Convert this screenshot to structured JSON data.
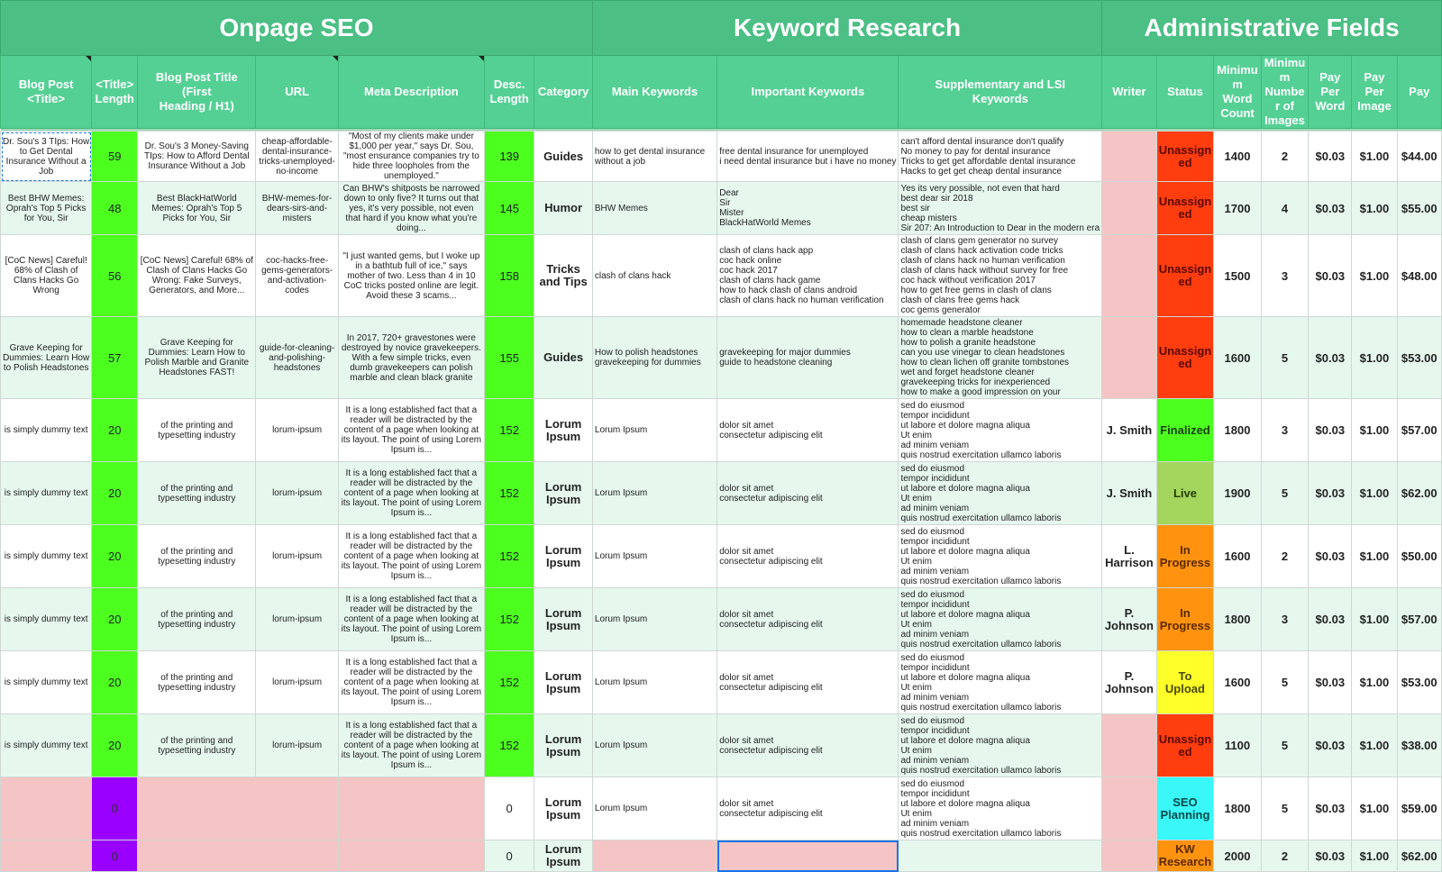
{
  "groups": [
    {
      "label": "Onpage SEO",
      "span": 7
    },
    {
      "label": "Keyword Research",
      "span": 3
    },
    {
      "label": "Administrative Fields",
      "span": 7
    }
  ],
  "columns": [
    "Blog Post <Title>",
    "<Title> Length",
    "Blog Post Title (First Heading / H1)",
    "URL",
    "Meta Description",
    "Desc. Length",
    "Category",
    "Main Keywords",
    "Important Keywords",
    "Supplementary and LSI Keywords",
    "Writer",
    "Status",
    "Minimum Word Count",
    "Minimum Number of Images",
    "Pay Per Word",
    "Pay Per Image",
    "Pay"
  ],
  "column_display": [
    "Blog Post <Title>",
    "<Title>\nLength",
    "Blog Post Title (First\nHeading / H1)",
    "URL",
    "Meta Description",
    "Desc.\nLength",
    "Category",
    "Main Keywords",
    "Important Keywords",
    "Supplementary and LSI\nKeywords",
    "Writer",
    "Status",
    "Minimu\nm Word\nCount",
    "Minimu\nm\nNumbe\nr of\nImages",
    "Pay Per\nWord",
    "Pay Per\nImage",
    "Pay"
  ],
  "rows": [
    {
      "title": "Dr. Sou's 3 TIps: How to Get Dental Insurance Without a Job",
      "title_len": "59",
      "h1": "Dr. Sou's 3 Money-Saving TIps: How to Afford Dental Insurance Without a Job",
      "url": "cheap-affordable-dental-insurance-tricks-unemployed-no-income",
      "meta": "\"Most of my clients make under $1,000 per year,\" says Dr. Sou, \"most ensurance companies try to hide three loopholes from the unemployed.\"",
      "desc_len": "139",
      "category": "Guides",
      "main_kw": "how to get dental insurance without a job",
      "imp_kw": "free dental insurance for unemployed\ni need dental insurance but i have no money",
      "lsi_kw": "can't afford dental insurance don't qualify\nNo money to pay for dental insurance\nTricks to get get affordable dental insurance\nHacks to get get cheap dental insurance",
      "writer": "",
      "status": "Unassigned",
      "min_words": "1400",
      "min_images": "2",
      "ppw": "$0.03",
      "ppi": "$1.00",
      "pay": "$44.00",
      "h": 48
    },
    {
      "title": "Best BHW Memes: Oprah's Top 5 Picks for You, Sir",
      "title_len": "48",
      "h1": "Best BlackHatWorld Memes: Oprah's Top 5 Picks for You, Sir",
      "url": "BHW-memes-for-dears-sirs-and-misters",
      "meta": "Can BHW's shitposts be narrowed down to only five? It turns out that yes, it's very possible, not even that hard if you know what you're doing...",
      "desc_len": "145",
      "category": "Humor",
      "main_kw": "BHW Memes",
      "imp_kw": "Dear\nSir\nMister\nBlackHatWorld Memes",
      "lsi_kw": "Yes its very possible, not even that hard\nbest dear sir 2018\nbest sir\ncheap misters\nSir 207: An Introduction to Dear in the modern era",
      "writer": "",
      "status": "Unassigned",
      "min_words": "1700",
      "min_images": "4",
      "ppw": "$0.03",
      "ppi": "$1.00",
      "pay": "$55.00",
      "h": 58
    },
    {
      "title": "[CoC News] Careful! 68% of Clash of Clans Hacks Go Wrong",
      "title_len": "56",
      "h1": "[CoC News] Careful! 68% of Clash of Clans Hacks Go Wrong: Fake Surveys, Generators, and More...",
      "url": "coc-hacks-free-gems-generators-and-activation-codes",
      "meta": "\"I just wanted gems, but I woke up in a bathtub full of ice,\" says mother of two. Less than 4 in 10 CoC tricks posted online are legit. Avoid these 3 scams...",
      "desc_len": "158",
      "category": "Tricks and Tips",
      "main_kw": "clash of clans hack",
      "imp_kw": "clash of clans hack app\ncoc hack online\ncoc hack 2017\nclash of clans hack game\nhow to hack clash of clans android\nclash of clans hack no human verification",
      "lsi_kw": "clash of clans gem generator no survey\nclash of clans hack activation code tricks\nclash of clans hack no human verification\nclash of clans hack without survey for free\ncoc hack without verification 2017\nhow to get free gems in clash of clans\nclash of clans free gems hack\ncoc gems generator",
      "writer": "",
      "status": "Unassigned",
      "min_words": "1500",
      "min_images": "3",
      "ppw": "$0.03",
      "ppi": "$1.00",
      "pay": "$48.00",
      "h": 90
    },
    {
      "title": "Grave Keeping for Dummies: Learn How to Polish Headstones",
      "title_len": "57",
      "h1": "Grave Keeping for Dummies: Learn How to Polish Marble and Granite Headstones FAST!",
      "url": "guide-for-cleaning-and-polishing-headstones",
      "meta": "In 2017, 720+ gravestones were destroyed by novice gravekeepers. With a few simple tricks, even dumb gravekeepers can polish marble and clean black granite",
      "desc_len": "155",
      "category": "Guides",
      "main_kw": "How to polish headstones\ngravekeeping for dummies",
      "imp_kw": "gravekeeping for major dummies\nguide to headstone cleaning",
      "lsi_kw": "homemade headstone cleaner\nhow to clean a marble headstone\nhow to polish a granite headstone\ncan you use vinegar to clean headstones\nhow to clean lichen off granite tombstones\nwet and forget headstone cleaner\ngravekeeping tricks for inexperienced\nhow to make a good impression on your",
      "writer": "",
      "status": "Unassigned",
      "min_words": "1600",
      "min_images": "5",
      "ppw": "$0.03",
      "ppi": "$1.00",
      "pay": "$53.00",
      "h": 90
    },
    {
      "title": "is simply dummy text",
      "title_len": "20",
      "h1": "of the printing and typesetting industry",
      "url": "lorum-ipsum",
      "meta": "It is a long established fact that a reader will be distracted by the content of a page when looking at its layout. The point of using Lorem Ipsum is...",
      "desc_len": "152",
      "category": "Lorum Ipsum",
      "main_kw": "Lorum Ipsum",
      "imp_kw": "dolor sit amet\nconsectetur adipiscing elit",
      "lsi_kw": "sed do eiusmod\ntempor incididunt\nut labore et dolore magna aliqua\nUt enim\nad minim veniam\nquis nostrud exercitation ullamco laboris",
      "writer": "J. Smith",
      "status": "Finalized",
      "min_words": "1800",
      "min_images": "3",
      "ppw": "$0.03",
      "ppi": "$1.00",
      "pay": "$57.00",
      "h": 69
    },
    {
      "title": "is simply dummy text",
      "title_len": "20",
      "h1": "of the printing and typesetting industry",
      "url": "lorum-ipsum",
      "meta": "It is a long established fact that a reader will be distracted by the content of a page when looking at its layout. The point of using Lorem Ipsum is...",
      "desc_len": "152",
      "category": "Lorum Ipsum",
      "main_kw": "Lorum Ipsum",
      "imp_kw": "dolor sit amet\nconsectetur adipiscing elit",
      "lsi_kw": "sed do eiusmod\ntempor incididunt\nut labore et dolore magna aliqua\nUt enim\nad minim veniam\nquis nostrud exercitation ullamco laboris",
      "writer": "J. Smith",
      "status": "Live",
      "min_words": "1900",
      "min_images": "5",
      "ppw": "$0.03",
      "ppi": "$1.00",
      "pay": "$62.00",
      "h": 69
    },
    {
      "title": "is simply dummy text",
      "title_len": "20",
      "h1": "of the printing and typesetting industry",
      "url": "lorum-ipsum",
      "meta": "It is a long established fact that a reader will be distracted by the content of a page when looking at its layout. The point of using Lorem Ipsum is...",
      "desc_len": "152",
      "category": "Lorum Ipsum",
      "main_kw": "Lorum Ipsum",
      "imp_kw": "dolor sit amet\nconsectetur adipiscing elit",
      "lsi_kw": "sed do eiusmod\ntempor incididunt\nut labore et dolore magna aliqua\nUt enim\nad minim veniam\nquis nostrud exercitation ullamco laboris",
      "writer": "L. Harrison",
      "status": "In Progress",
      "min_words": "1600",
      "min_images": "2",
      "ppw": "$0.03",
      "ppi": "$1.00",
      "pay": "$50.00",
      "h": 69
    },
    {
      "title": "is simply dummy text",
      "title_len": "20",
      "h1": "of the printing and typesetting industry",
      "url": "lorum-ipsum",
      "meta": "It is a long established fact that a reader will be distracted by the content of a page when looking at its layout. The point of using Lorem Ipsum is...",
      "desc_len": "152",
      "category": "Lorum Ipsum",
      "main_kw": "Lorum Ipsum",
      "imp_kw": "dolor sit amet\nconsectetur adipiscing elit",
      "lsi_kw": "sed do eiusmod\ntempor incididunt\nut labore et dolore magna aliqua\nUt enim\nad minim veniam\nquis nostrud exercitation ullamco laboris",
      "writer": "P. Johnson",
      "status": "In Progress",
      "min_words": "1800",
      "min_images": "3",
      "ppw": "$0.03",
      "ppi": "$1.00",
      "pay": "$57.00",
      "h": 69
    },
    {
      "title": "is simply dummy text",
      "title_len": "20",
      "h1": "of the printing and typesetting industry",
      "url": "lorum-ipsum",
      "meta": "It is a long established fact that a reader will be distracted by the content of a page when looking at its layout. The point of using Lorem Ipsum is...",
      "desc_len": "152",
      "category": "Lorum Ipsum",
      "main_kw": "Lorum Ipsum",
      "imp_kw": "dolor sit amet\nconsectetur adipiscing elit",
      "lsi_kw": "sed do eiusmod\ntempor incididunt\nut labore et dolore magna aliqua\nUt enim\nad minim veniam\nquis nostrud exercitation ullamco laboris",
      "writer": "P. Johnson",
      "status": "To Upload",
      "min_words": "1600",
      "min_images": "5",
      "ppw": "$0.03",
      "ppi": "$1.00",
      "pay": "$53.00",
      "h": 69
    },
    {
      "title": "is simply dummy text",
      "title_len": "20",
      "h1": "of the printing and typesetting industry",
      "url": "lorum-ipsum",
      "meta": "It is a long established fact that a reader will be distracted by the content of a page when looking at its layout. The point of using Lorem Ipsum is...",
      "desc_len": "152",
      "category": "Lorum Ipsum",
      "main_kw": "Lorum Ipsum",
      "imp_kw": "dolor sit amet\nconsectetur adipiscing elit",
      "lsi_kw": "sed do eiusmod\ntempor incididunt\nut labore et dolore magna aliqua\nUt enim\nad minim veniam\nquis nostrud exercitation ullamco laboris",
      "writer": "",
      "status": "Unassigned",
      "min_words": "1100",
      "min_images": "5",
      "ppw": "$0.03",
      "ppi": "$1.00",
      "pay": "$38.00",
      "h": 69
    },
    {
      "title": "",
      "title_len": "0",
      "h1": "",
      "url": "",
      "meta": "",
      "desc_len": "0",
      "category": "Lorum Ipsum",
      "main_kw": "Lorum Ipsum",
      "imp_kw": "dolor sit amet\nconsectetur adipiscing elit",
      "lsi_kw": "sed do eiusmod\ntempor incididunt\nut labore et dolore magna aliqua\nUt enim\nad minim veniam\nquis nostrud exercitation ullamco laboris",
      "writer": "",
      "status": "SEO Planning",
      "min_words": "1800",
      "min_images": "5",
      "ppw": "$0.03",
      "ppi": "$1.00",
      "pay": "$59.00",
      "h": 69
    },
    {
      "title": "",
      "title_len": "0",
      "h1": "",
      "url": "",
      "meta": "",
      "desc_len": "0",
      "category": "Lorum Ipsum",
      "main_kw": "",
      "imp_kw": "",
      "lsi_kw": "",
      "writer": "",
      "status": "KW Research",
      "min_words": "2000",
      "min_images": "2",
      "ppw": "$0.03",
      "ppi": "$1.00",
      "pay": "$62.00",
      "h": 34
    }
  ],
  "status_labels": {
    "Unassigned": "Unassign\ned",
    "Finalized": "Finalized",
    "Live": "Live",
    "In Progress": "In\nProgress",
    "To Upload": "To\nUpload",
    "SEO Planning": "SEO\nPlanning",
    "KW Research": "KW\nResearch"
  },
  "status_colors": {
    "Unassigned": "#ff3d0f",
    "Finalized": "#4cff1f",
    "Live": "#a4d65e",
    "In Progress": "#ff9310",
    "To Upload": "#ffff2a",
    "SEO Planning": "#3af8f8",
    "KW Research": "#ff9310"
  },
  "colors": {
    "header_group": "#4bbf84",
    "header_col": "#55d095",
    "length_ok": "#4cff1f",
    "length_empty": "#9a00ff",
    "missing_cell": "#f5c5c5",
    "row_alt": "#e6f7ee"
  }
}
